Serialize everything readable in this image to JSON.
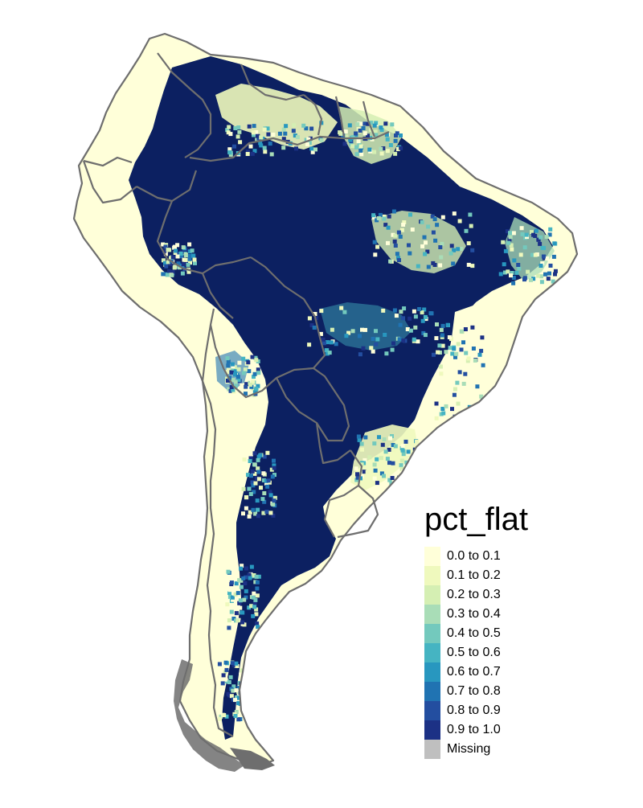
{
  "legend": {
    "title": "pct_flat",
    "items": [
      {
        "label": "0.0 to 0.1",
        "color": "#ffffd9"
      },
      {
        "label": "0.1 to 0.2",
        "color": "#eff9bd"
      },
      {
        "label": "0.2 to 0.3",
        "color": "#d5efb3"
      },
      {
        "label": "0.3 to 0.4",
        "color": "#a9ddb7"
      },
      {
        "label": "0.4 to 0.5",
        "color": "#73c9bd"
      },
      {
        "label": "0.5 to 0.6",
        "color": "#45b4c2"
      },
      {
        "label": "0.6 to 0.7",
        "color": "#2897bf"
      },
      {
        "label": "0.7 to 0.8",
        "color": "#2073b2"
      },
      {
        "label": "0.8 to 0.9",
        "color": "#234ea0"
      },
      {
        "label": "0.9 to 1.0",
        "color": "#1c3185"
      }
    ],
    "missing": {
      "label": "Missing",
      "color": "#bfbfbf"
    }
  },
  "map": {
    "low_color": "#ffffd9",
    "high_color": "#0c2061",
    "border_color": "#6e6e6e"
  }
}
